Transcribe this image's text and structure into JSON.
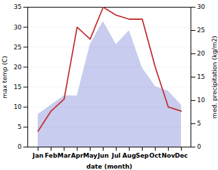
{
  "chart_data": {
    "type": "line",
    "xlabel": "date (month)",
    "ylabel": "max temp (C)",
    "y2label": "med. precipitation (kg/m2)",
    "categories": [
      "Jan",
      "Feb",
      "Mar",
      "Apr",
      "May",
      "Jun",
      "Jul",
      "Aug",
      "Sep",
      "Oct",
      "Nov",
      "Dec"
    ],
    "series": [
      {
        "type": "area",
        "axis": "y2",
        "color": "#c8ccee",
        "values": [
          7,
          9,
          11,
          11,
          22,
          27,
          22,
          25,
          17,
          13,
          12,
          9
        ]
      },
      {
        "type": "line",
        "color": "#c03030",
        "values": [
          4,
          9,
          12,
          30,
          27,
          35,
          33,
          32,
          32,
          20,
          10,
          9
        ]
      }
    ],
    "ylim": [
      0,
      35
    ],
    "yticks": [
      0,
      5,
      10,
      15,
      20,
      25,
      30,
      35
    ],
    "y2lim": [
      0,
      30
    ],
    "y2ticks": [
      0,
      5,
      10,
      15,
      20,
      25,
      30
    ],
    "grid": true
  }
}
